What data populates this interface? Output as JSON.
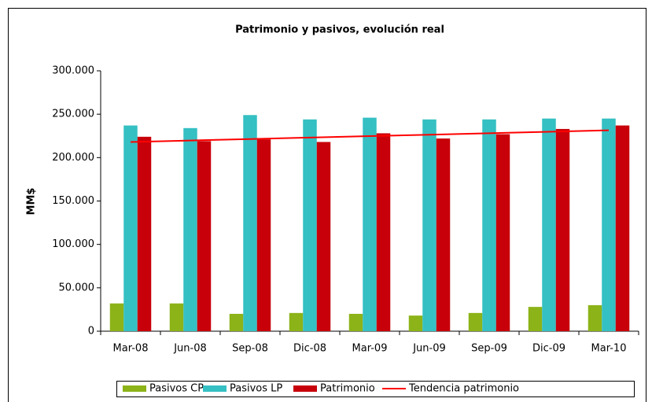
{
  "chart_data": {
    "type": "bar",
    "title": "Patrimonio y pasivos, evolución real",
    "y_label": "MM$",
    "categories": [
      "Mar-08",
      "Jun-08",
      "Sep-08",
      "Dic-08",
      "Mar-09",
      "Jun-09",
      "Sep-09",
      "Dic-09",
      "Mar-10"
    ],
    "series": [
      {
        "name": "Pasivos CP",
        "color": "#8cb318",
        "values": [
          32000,
          32000,
          20000,
          21000,
          20000,
          18000,
          21000,
          28000,
          30000
        ]
      },
      {
        "name": "Pasivos LP",
        "color": "#35c0c3",
        "values": [
          237000,
          234000,
          249000,
          244000,
          246000,
          244000,
          244000,
          245000,
          245000
        ]
      },
      {
        "name": "Patrimonio",
        "color": "#c8000a",
        "values": [
          224000,
          219000,
          221000,
          218000,
          228000,
          222000,
          227000,
          233000,
          237000
        ]
      },
      {
        "name": "Tendencia patrimonio",
        "color": "#ff0000",
        "type": "line",
        "values": [
          218000,
          219700,
          221400,
          223100,
          224800,
          226400,
          228100,
          229800,
          231500
        ]
      }
    ],
    "ylim": [
      0,
      300000
    ],
    "yticks": [
      0,
      {
        "value": 50000,
        "label": "50.000"
      },
      {
        "value": 100000,
        "label": "100.000"
      },
      {
        "value": 150000,
        "label": "150.000"
      },
      {
        "value": 200000,
        "label": "200.000"
      },
      {
        "value": 250000,
        "label": "250.000"
      },
      {
        "value": 300000,
        "label": "300.000"
      }
    ],
    "legend": "bottom"
  }
}
